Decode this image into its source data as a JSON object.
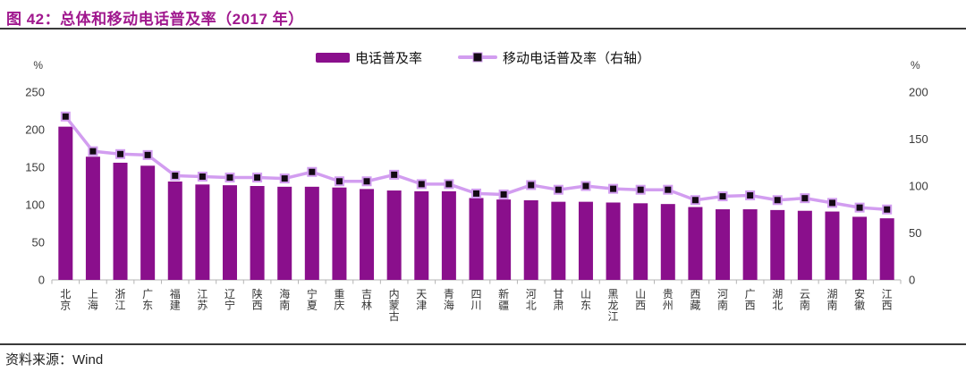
{
  "header": {
    "title": "图 42：总体和移动电话普及率（2017 年）"
  },
  "legend": {
    "items": [
      {
        "label": "电话普及率",
        "swatch": "bar-swatch"
      },
      {
        "label": "移动电话普及率（右轴）",
        "swatch": "line-swatch"
      }
    ]
  },
  "footer": {
    "source_label": "资料来源：",
    "source_value": "Wind"
  },
  "colors": {
    "bar": "#8a0f8c",
    "line": "#d29df0",
    "marker_fill": "#140a14",
    "title": "#a0188e",
    "axis_text": "#3a3a3a",
    "tick": "#b5b5b5",
    "legend_text": "#111111"
  },
  "chart_data": {
    "type": "bar",
    "title": "总体和移动电话普及率（2017 年）",
    "categories": [
      "北京",
      "上海",
      "浙江",
      "广东",
      "福建",
      "江苏",
      "辽宁",
      "陕西",
      "海南",
      "宁夏",
      "重庆",
      "吉林",
      "内蒙古",
      "天津",
      "青海",
      "四川",
      "新疆",
      "河北",
      "甘肃",
      "山东",
      "黑龙江",
      "山西",
      "贵州",
      "西藏",
      "河南",
      "广西",
      "湖北",
      "云南",
      "湖南",
      "安徽",
      "江西"
    ],
    "series": [
      {
        "name": "电话普及率",
        "type": "bar",
        "axis": "left",
        "values": [
          204,
          164,
          156,
          152,
          131,
          127,
          126,
          125,
          124,
          124,
          123,
          121,
          119,
          118,
          118,
          109,
          107,
          106,
          104,
          104,
          103,
          102,
          101,
          97,
          94,
          94,
          93,
          92,
          91,
          84,
          82
        ]
      },
      {
        "name": "移动电话普及率（右轴）",
        "type": "line",
        "axis": "right",
        "values": [
          174,
          137,
          134,
          133,
          111,
          110,
          109,
          109,
          108,
          115,
          105,
          105,
          112,
          102,
          102,
          92,
          91,
          101,
          96,
          100,
          97,
          96,
          96,
          85,
          89,
          90,
          85,
          87,
          82,
          77,
          75
        ]
      }
    ],
    "left_axis": {
      "unit": "%",
      "range": [
        0,
        250
      ],
      "ticks": [
        0,
        50,
        100,
        150,
        200,
        250
      ]
    },
    "right_axis": {
      "unit": "%",
      "range": [
        0,
        200
      ],
      "ticks": [
        0,
        50,
        100,
        150,
        200
      ]
    },
    "grid": false,
    "legend_position": "top-center"
  }
}
